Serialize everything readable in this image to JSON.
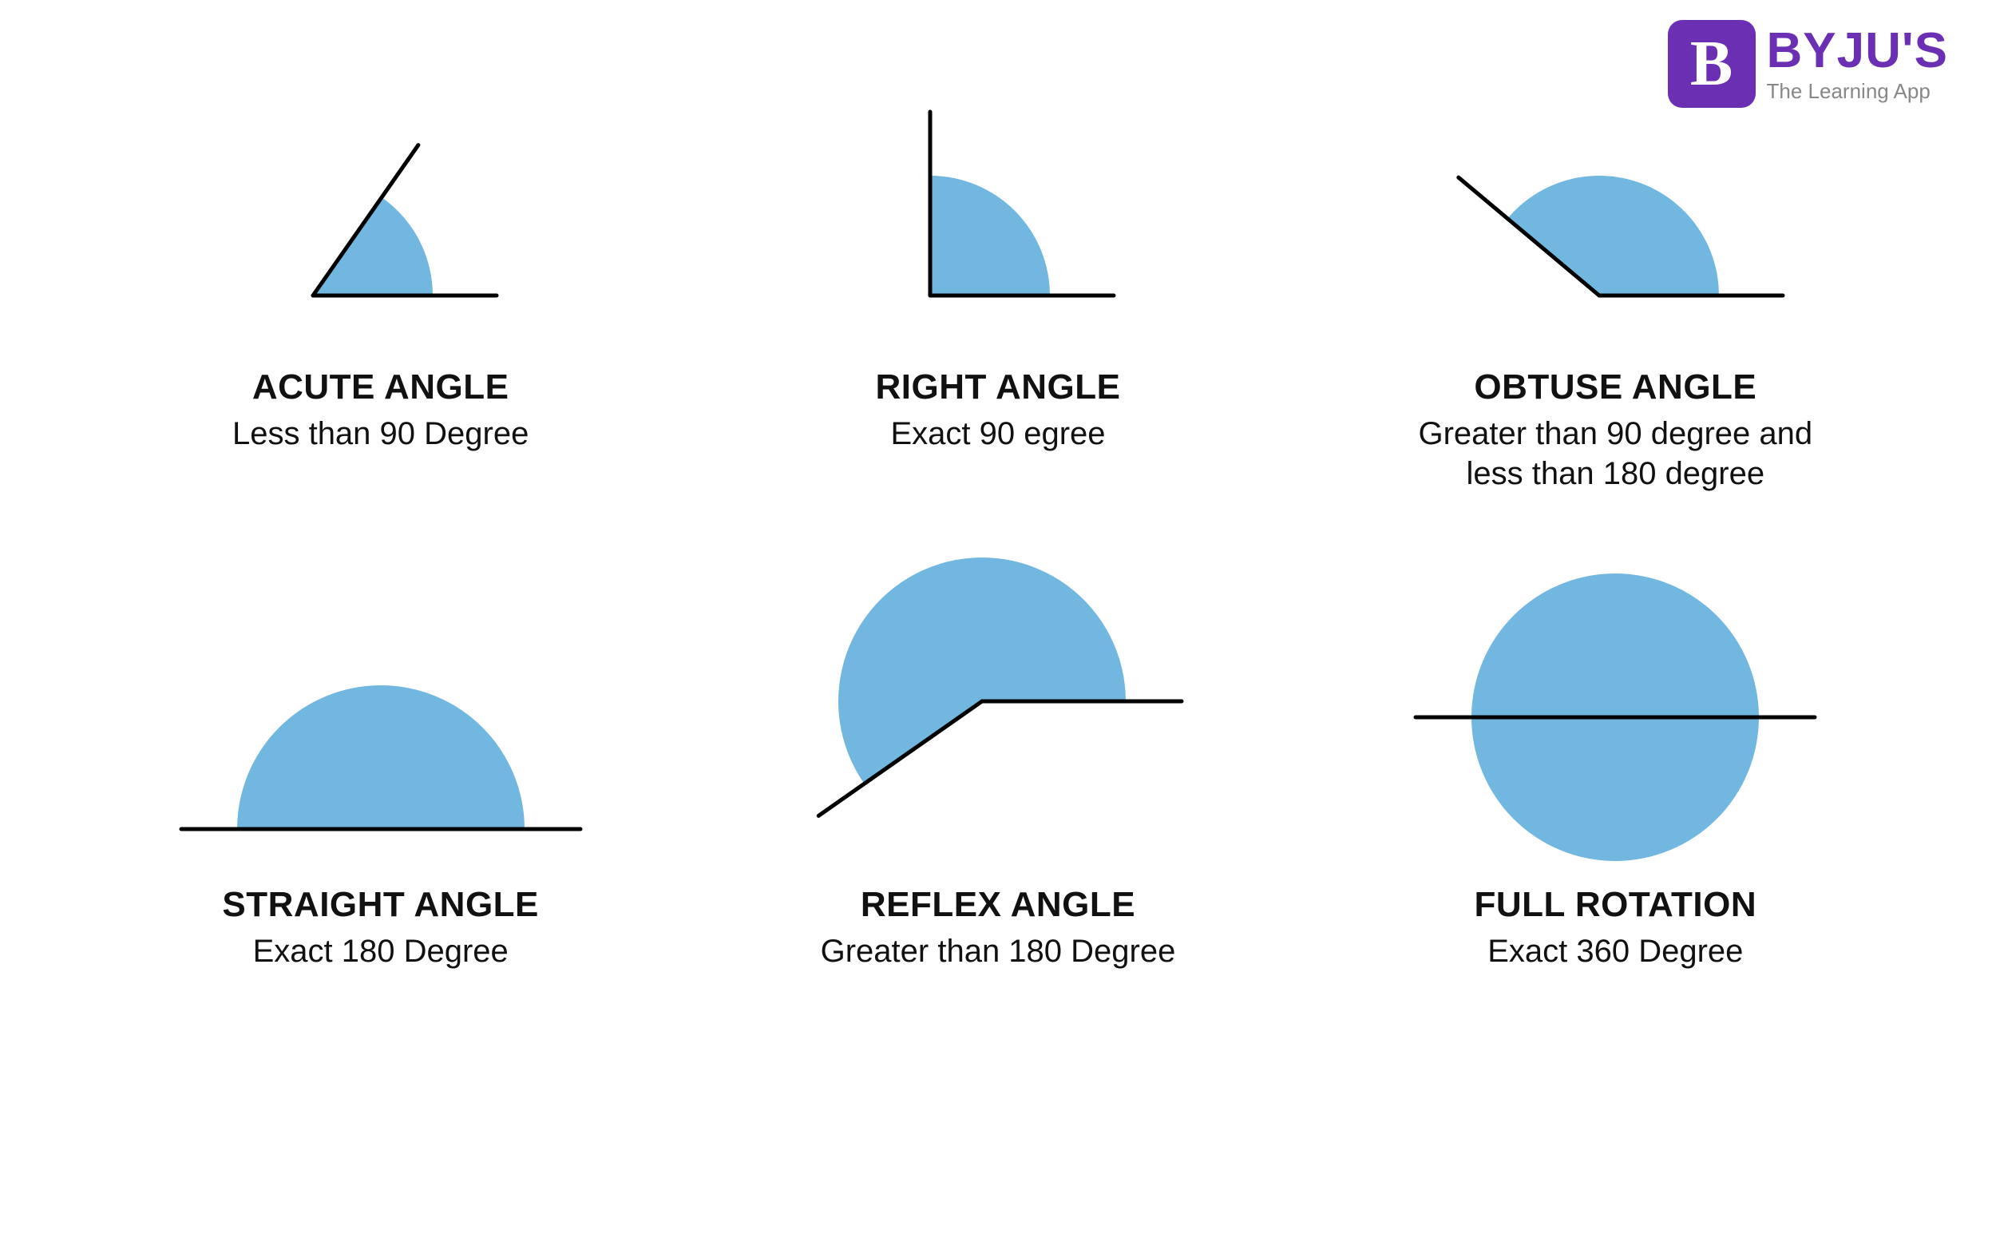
{
  "brand": {
    "logo_letter": "B",
    "title": "BYJU'S",
    "subtitle": "The Learning App",
    "box_color": "#6b2fb3",
    "title_color": "#6b2fb3",
    "subtitle_color": "#888888"
  },
  "style": {
    "fill_color": "#72b7df",
    "stroke_color": "#000000",
    "stroke_width": 5,
    "background_color": "#ffffff",
    "title_fontsize": 44,
    "desc_fontsize": 40,
    "text_color": "#111111"
  },
  "angles": [
    {
      "key": "acute",
      "title": "ACUTE ANGLE",
      "desc": "Less than 90 Degree",
      "degrees": 55,
      "type": "angle-wedge"
    },
    {
      "key": "right",
      "title": "RIGHT ANGLE",
      "desc": "Exact 90 egree",
      "degrees": 90,
      "type": "angle-wedge"
    },
    {
      "key": "obtuse",
      "title": "OBTUSE ANGLE",
      "desc": "Greater than 90 degree and less than 180 degree",
      "degrees": 140,
      "type": "angle-wedge"
    },
    {
      "key": "straight",
      "title": "STRAIGHT ANGLE",
      "desc": "Exact 180 Degree",
      "degrees": 180,
      "type": "angle-wedge"
    },
    {
      "key": "reflex",
      "title": "REFLEX ANGLE",
      "desc": "Greater than 180 Degree",
      "degrees": 215,
      "type": "angle-wedge"
    },
    {
      "key": "full",
      "title": "FULL ROTATION",
      "desc": "Exact 360 Degree",
      "degrees": 360,
      "type": "angle-wedge"
    }
  ],
  "geometry": {
    "arc_radius": 150,
    "arm_length": 230,
    "row2_arc_radius": 180,
    "row2_arm_length": 250
  }
}
